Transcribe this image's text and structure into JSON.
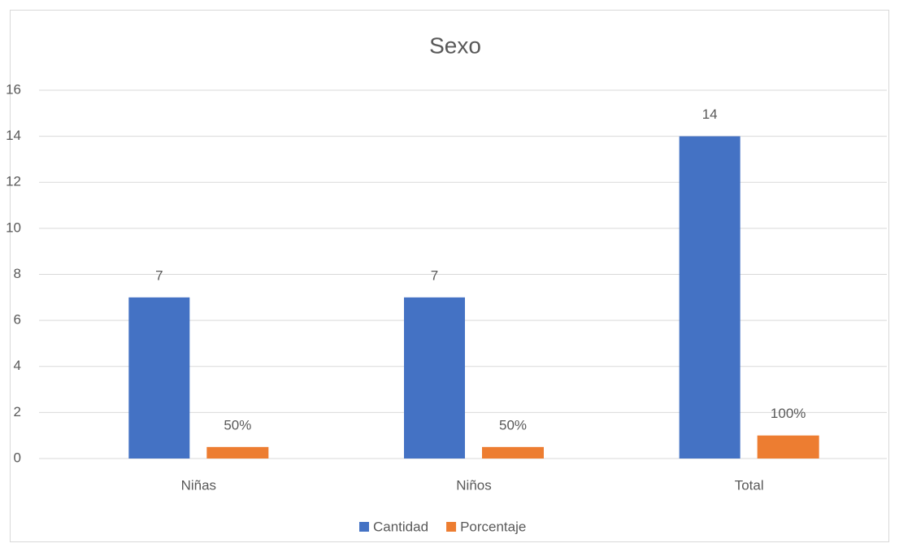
{
  "chart_data": {
    "type": "bar",
    "title": "Sexo",
    "categories": [
      "Niñas",
      "Niños",
      "Total"
    ],
    "series": [
      {
        "name": "Cantidad",
        "color": "#4472c4",
        "values": [
          7,
          7,
          14
        ]
      },
      {
        "name": "Porcentaje",
        "color": "#ed7d31",
        "values": [
          0.5,
          0.5,
          1
        ],
        "value_labels": [
          "50%",
          "50%",
          "100%"
        ]
      }
    ],
    "ylim": [
      0,
      16
    ],
    "yticks": [
      0,
      2,
      4,
      6,
      8,
      10,
      12,
      14,
      16
    ],
    "grid": true,
    "legend": "bottom"
  }
}
